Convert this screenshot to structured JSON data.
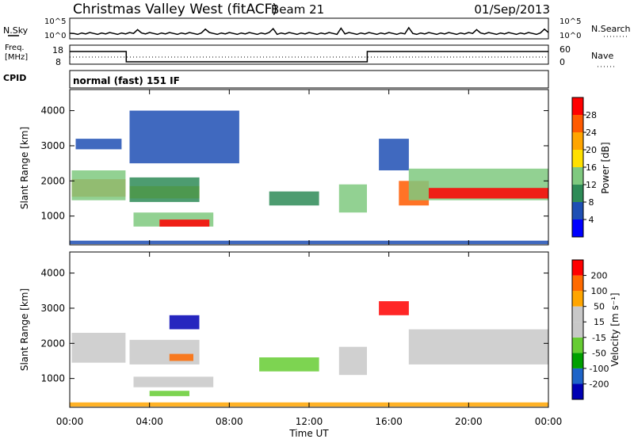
{
  "header": {
    "radar": "Christmas Valley West (fitACF)",
    "beam": "Beam 21",
    "date": "01/Sep/2013"
  },
  "status_panels": {
    "nsky_label": "N.Sky",
    "nsearch_label": "N.Search",
    "noise_ticks": [
      "10^5",
      "10^0"
    ],
    "freq_label_1": "Freq.",
    "freq_label_2": "[MHz]",
    "freq_ticks": [
      "18",
      "8"
    ],
    "nave_label": "Nave",
    "nave_ticks": [
      "60",
      "0"
    ],
    "cpid_label": "CPID",
    "cpid_value": "normal (fast) 151 IF"
  },
  "colors": {
    "power_scale": [
      "#0000ff",
      "#1e4fb4",
      "#2e8b57",
      "#7fc97f",
      "#ffe000",
      "#ffa500",
      "#ff5a00",
      "#ff0000"
    ],
    "velocity_scale": [
      "#0000b4",
      "#1e64c8",
      "#00a000",
      "#66cc33",
      "#c8c8c8",
      "#c8c8c8",
      "#ffa500",
      "#ff6a00",
      "#ff0000"
    ],
    "ground_scatter": "#c8c8c8"
  },
  "chart_data": [
    {
      "type": "line",
      "panel": "noise",
      "left_label": "N.Sky",
      "right_label": "N.Search",
      "ticks": [
        "10^5",
        "10^0"
      ],
      "xlim": [
        "00:00",
        "24:00"
      ],
      "description_values": "noise level near 10^0 with occasional spikes"
    },
    {
      "type": "line",
      "panel": "frequency",
      "left_label": "Freq. [MHz]",
      "right_label": "Nave",
      "freq_ticks": [
        8,
        18
      ],
      "nave_ticks": [
        0,
        60
      ],
      "freq_series": {
        "x": [
          "00:00",
          "02:50",
          "02:50",
          "14:55",
          "14:55",
          "24:00"
        ],
        "y": [
          16,
          16,
          9.5,
          9.5,
          16,
          16
        ]
      }
    },
    {
      "type": "heatmap",
      "panel": "power",
      "ylabel": "Slant Range [km]",
      "yticks": [
        1000,
        2000,
        3000,
        4000
      ],
      "ylim": [
        180,
        4600
      ],
      "xlim": [
        "00:00",
        "24:00"
      ],
      "colorbar_label": "Power [dB]",
      "colorbar_ticks": [
        "4",
        "8",
        "12",
        "16",
        "20",
        "24",
        "28"
      ],
      "cells": [
        {
          "t0": 0.1,
          "t1": 2.8,
          "r0": 1550,
          "r1": 2050,
          "level": 6
        },
        {
          "t0": 0.1,
          "t1": 2.8,
          "r0": 1450,
          "r1": 2300,
          "level": 3
        },
        {
          "t0": 0.3,
          "t1": 2.6,
          "r0": 2900,
          "r1": 3200,
          "level": 1
        },
        {
          "t0": 3.0,
          "t1": 6.5,
          "r0": 1500,
          "r1": 1850,
          "level": 4
        },
        {
          "t0": 3.0,
          "t1": 6.5,
          "r0": 1400,
          "r1": 2100,
          "level": 2
        },
        {
          "t0": 3.2,
          "t1": 7.2,
          "r0": 700,
          "r1": 1100,
          "level": 3
        },
        {
          "t0": 4.5,
          "t1": 7.0,
          "r0": 700,
          "r1": 900,
          "level": 7
        },
        {
          "t0": 3.0,
          "t1": 8.5,
          "r0": 2500,
          "r1": 4000,
          "level": 1
        },
        {
          "t0": 10.0,
          "t1": 12.5,
          "r0": 1300,
          "r1": 1700,
          "level": 2
        },
        {
          "t0": 13.5,
          "t1": 14.9,
          "r0": 1100,
          "r1": 1900,
          "level": 3
        },
        {
          "t0": 15.5,
          "t1": 17.0,
          "r0": 2300,
          "r1": 3200,
          "level": 1
        },
        {
          "t0": 16.5,
          "t1": 18.0,
          "r0": 1300,
          "r1": 2000,
          "level": 6
        },
        {
          "t0": 17.0,
          "t1": 24.0,
          "r0": 1450,
          "r1": 2350,
          "level": 3
        },
        {
          "t0": 18.0,
          "t1": 24.0,
          "r0": 1500,
          "r1": 1800,
          "level": 7
        },
        {
          "t0": 0.0,
          "t1": 24.0,
          "r0": 200,
          "r1": 300,
          "level": 1
        }
      ]
    },
    {
      "type": "heatmap",
      "panel": "velocity",
      "ylabel": "Slant Range [km]",
      "yticks": [
        1000,
        2000,
        3000,
        4000
      ],
      "ylim": [
        180,
        4600
      ],
      "xlim": [
        "00:00",
        "24:00"
      ],
      "xticks": [
        "00:00",
        "04:00",
        "08:00",
        "12:00",
        "16:00",
        "20:00",
        "00:00"
      ],
      "xlabel": "Time UT",
      "colorbar_label": "Velocity [m s⁻¹]",
      "colorbar_ticks": [
        "200",
        "100",
        "50",
        "15",
        "-15",
        "-50",
        "-100",
        "-200"
      ],
      "cells": [
        {
          "t0": 0.1,
          "t1": 2.8,
          "r0": 1450,
          "r1": 2300,
          "level": 4
        },
        {
          "t0": 3.0,
          "t1": 6.5,
          "r0": 1400,
          "r1": 2100,
          "level": 4
        },
        {
          "t0": 5.0,
          "t1": 6.2,
          "r0": 1500,
          "r1": 1700,
          "level": 7
        },
        {
          "t0": 3.2,
          "t1": 7.2,
          "r0": 750,
          "r1": 1050,
          "level": 4
        },
        {
          "t0": 4.0,
          "t1": 6.0,
          "r0": 500,
          "r1": 650,
          "level": 3
        },
        {
          "t0": 5.0,
          "t1": 6.5,
          "r0": 2400,
          "r1": 2800,
          "level": 0
        },
        {
          "t0": 9.5,
          "t1": 12.5,
          "r0": 1200,
          "r1": 1600,
          "level": 3
        },
        {
          "t0": 13.5,
          "t1": 14.9,
          "r0": 1100,
          "r1": 1900,
          "level": 4
        },
        {
          "t0": 15.5,
          "t1": 17.0,
          "r0": 2800,
          "r1": 3200,
          "level": 8
        },
        {
          "t0": 17.0,
          "t1": 24.0,
          "r0": 1400,
          "r1": 2400,
          "level": 4
        },
        {
          "t0": 0.0,
          "t1": 24.0,
          "r0": 200,
          "r1": 320,
          "level": 6
        }
      ]
    }
  ]
}
